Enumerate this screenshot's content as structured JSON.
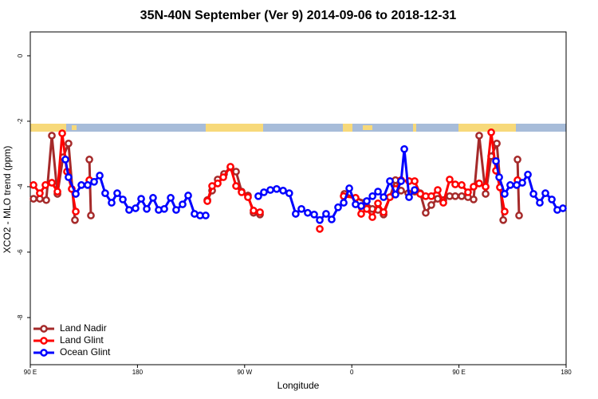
{
  "chart_data": {
    "type": "line",
    "title": "35N-40N September (Ver 9)   2014-09-06 to 2018-12-31",
    "x_label": "Longitude",
    "y_label": "XCO2 - MLO trend (ppm)",
    "xlim": [
      90,
      540
    ],
    "xticks": [
      {
        "value": 90,
        "label": "90 E"
      },
      {
        "value": 180,
        "label": "180"
      },
      {
        "value": 270,
        "label": "90 W"
      },
      {
        "value": 360,
        "label": "0"
      },
      {
        "value": 450,
        "label": "90 E"
      },
      {
        "value": 540,
        "label": "180"
      }
    ],
    "ylim": [
      -9.44,
      0.73
    ],
    "yticks": [
      0,
      -2,
      -4,
      -6,
      -8
    ],
    "legend": "bottom-left",
    "series": [
      {
        "name": "Land Nadir",
        "color": "#a52a2a",
        "x": [
          92.7,
          98,
          103.4,
          108.1,
          112.8,
          117.5,
          122.1,
          127.5,
          null,
          139.6,
          140.9,
          null,
          238.7,
          242.7,
          247.4,
          252.7,
          258.1,
          262.8,
          267.5,
          272.8,
          277.5,
          282.9,
          null,
          353.8,
          371.9,
          377.3,
          382,
          386.7,
          392,
          396.7,
          401.4,
          407.4,
          412.8,
          417.5,
          422.1,
          426.8,
          432.2,
          436.9,
          442.2,
          446.9,
          452.3,
          457.6,
          462.3,
          467,
          472.4,
          477.1,
          481.8,
          487.2,
          null,
          499.2,
          500.5
        ],
        "values": [
          -4.37,
          -4.37,
          -4.41,
          -2.44,
          -4.22,
          -3.1,
          -2.68,
          -5.02,
          null,
          -3.17,
          -4.88,
          null,
          -4.41,
          -4.12,
          -3.78,
          -3.61,
          -3.41,
          -3.54,
          -4.15,
          -4.27,
          -4.8,
          -4.85,
          null,
          -4.22,
          -4.46,
          -4.68,
          -4.71,
          -4.85,
          -4.32,
          -3.8,
          -4.12,
          -4.2,
          -4.15,
          -4.2,
          -4.8,
          -4.56,
          -4.37,
          -4.41,
          -4.29,
          -4.29,
          -4.29,
          -4.32,
          -4.39,
          -2.44,
          -4.22,
          -3.07,
          -2.68,
          -5.02,
          null,
          -3.17,
          -4.88
        ]
      },
      {
        "name": "Land Glint",
        "color": "#ff0000",
        "x": [
          92.7,
          98,
          102.7,
          108.1,
          112.8,
          116.8,
          120.8,
          124.8,
          128.2,
          null,
          139.6,
          null,
          238.7,
          242.7,
          247.4,
          252.1,
          258.1,
          262.8,
          267.5,
          272.8,
          277.5,
          282.9,
          null,
          333.1,
          null,
          353.2,
          363.2,
          367.9,
          372.6,
          377.3,
          382,
          386.7,
          392,
          396.7,
          401.4,
          408.1,
          412.8,
          417.5,
          422.1,
          426.8,
          432.2,
          436.9,
          442.2,
          446.9,
          452.3,
          457.6,
          462.3,
          467,
          472.4,
          477.1,
          481.1,
          484.4,
          488.4,
          null,
          499.2
        ],
        "values": [
          -3.95,
          -4.2,
          -3.95,
          -3.88,
          -4.15,
          -2.37,
          -3.54,
          -4.07,
          -4.76,
          null,
          -3.8,
          null,
          -4.44,
          -3.98,
          -3.9,
          -3.71,
          -3.39,
          -3.98,
          -4.17,
          -4.32,
          -4.73,
          -4.78,
          null,
          -5.29,
          null,
          -4.29,
          -4.34,
          -4.83,
          -4.68,
          -4.93,
          -4.51,
          -4.78,
          -4.32,
          -4.07,
          -3.8,
          -3.83,
          -3.83,
          -4.22,
          -4.29,
          -4.29,
          -4.1,
          -4.49,
          -3.78,
          -3.93,
          -3.95,
          -4.17,
          -4.0,
          -3.9,
          -4.0,
          -2.34,
          -3.51,
          -4.02,
          -4.76,
          null,
          -3.8
        ]
      },
      {
        "name": "Ocean Glint",
        "color": "#0000ff",
        "x": [
          119.5,
          122.1,
          128.2,
          132.9,
          138.2,
          143.6,
          148.3,
          152.9,
          158.3,
          163,
          167.7,
          173,
          178.4,
          183.1,
          187.8,
          193.1,
          197.8,
          202.5,
          207.9,
          212.5,
          217.9,
          222.6,
          227.9,
          232.6,
          237.3,
          null,
          281.5,
          286.2,
          291.6,
          296.9,
          302.3,
          307.5,
          312.9,
          317.7,
          323,
          328.4,
          333.1,
          338.4,
          343.1,
          348.5,
          353.2,
          357.9,
          363.2,
          367.9,
          372.6,
          377.4,
          382,
          386.7,
          392,
          396.7,
          401.4,
          404.1,
          408.1,
          412.8,
          null,
          481.1,
          483.8,
          488.4,
          493.1,
          498.5,
          503.2,
          507.9,
          512.6,
          517.9,
          522.6,
          528,
          532.6,
          537.3
        ],
        "values": [
          -3.17,
          -3.71,
          -4.22,
          -3.95,
          -3.95,
          -3.85,
          -3.66,
          -4.2,
          -4.49,
          -4.2,
          -4.39,
          -4.71,
          -4.66,
          -4.37,
          -4.68,
          -4.34,
          -4.71,
          -4.68,
          -4.34,
          -4.71,
          -4.54,
          -4.27,
          -4.83,
          -4.88,
          -4.88,
          null,
          -4.29,
          -4.17,
          -4.1,
          -4.07,
          -4.12,
          -4.2,
          -4.83,
          -4.68,
          -4.8,
          -4.85,
          -5.02,
          -4.83,
          -5.0,
          -4.63,
          -4.49,
          -4.05,
          -4.54,
          -4.59,
          -4.44,
          -4.29,
          -4.15,
          -4.32,
          -3.83,
          -4.24,
          -3.83,
          -2.85,
          -4.32,
          -4.1,
          null,
          -3.22,
          -3.71,
          -4.22,
          -3.95,
          -3.95,
          -3.88,
          -3.63,
          -4.22,
          -4.49,
          -4.2,
          -4.39,
          -4.71,
          -4.66
        ]
      }
    ]
  }
}
